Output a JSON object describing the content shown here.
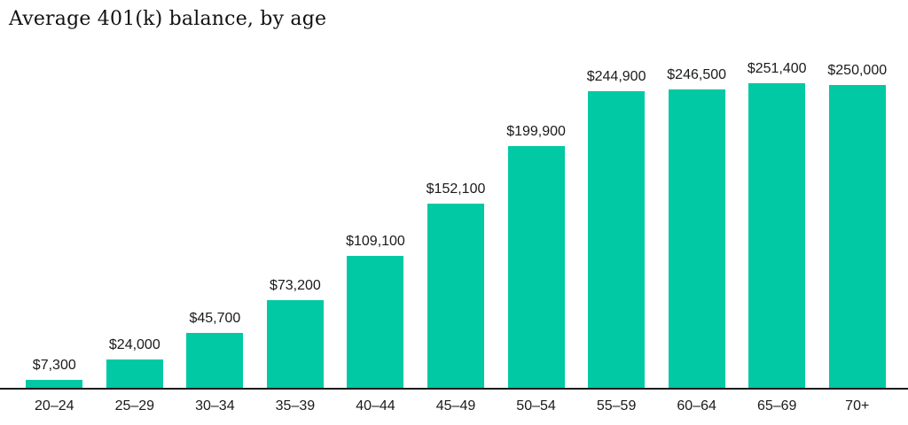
{
  "chart_data": {
    "type": "bar",
    "title": "Average 401(k) balance, by age",
    "categories": [
      "20–24",
      "25–29",
      "30–34",
      "35–39",
      "40–44",
      "45–49",
      "50–54",
      "55–59",
      "60–64",
      "65–69",
      "70+"
    ],
    "values": [
      7300,
      24000,
      45700,
      73200,
      109100,
      152100,
      199900,
      244900,
      246500,
      251400,
      250000
    ],
    "value_labels": [
      "$7,300",
      "$24,000",
      "$45,700",
      "$73,200",
      "$109,100",
      "$152,100",
      "$199,900",
      "$244,900",
      "$246,500",
      "$251,400",
      "$250,000"
    ],
    "xlabel": "",
    "ylabel": "",
    "ylim": [
      0,
      251400
    ],
    "grid": false,
    "legend": "none",
    "bar_color": "#00C9A4",
    "axis_color": "#1a1a1a",
    "label_color": "#1a1a1a"
  }
}
